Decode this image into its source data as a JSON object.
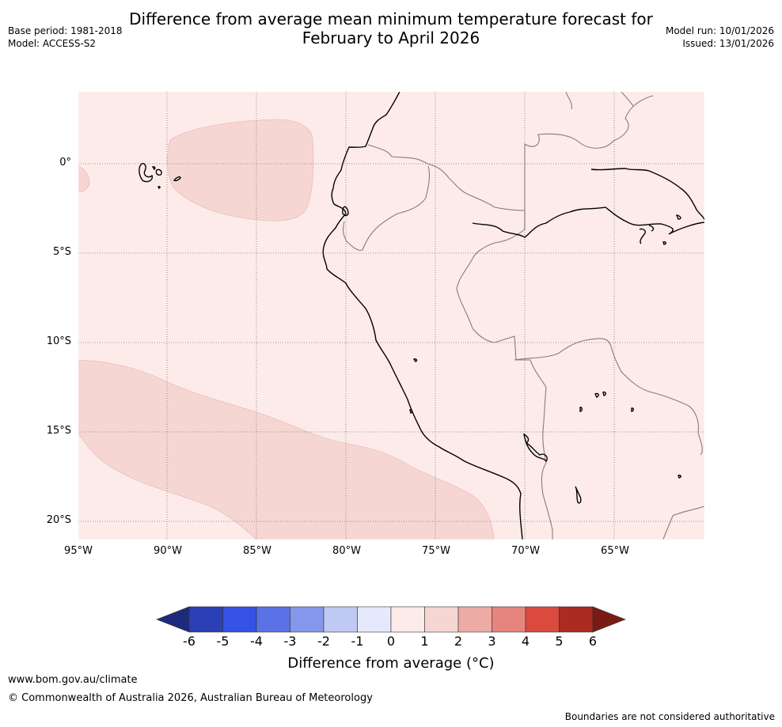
{
  "title": {
    "line1": "Difference from average mean minimum temperature forecast for",
    "line2": "February to April 2026"
  },
  "meta": {
    "base_period": "Base period: 1981-2018",
    "model": "Model: ACCESS-S2",
    "model_run": "Model run: 10/01/2026",
    "issued": "Issued: 13/01/2026"
  },
  "map": {
    "lat_labels": [
      "0°",
      "5°S",
      "10°S",
      "15°S",
      "20°S"
    ],
    "lon_labels": [
      "95°W",
      "90°W",
      "85°W",
      "80°W",
      "75°W",
      "70°W",
      "65°W"
    ],
    "background_anomaly_category": "0 to 1",
    "patch_anomaly_category": "1 to 2",
    "colors": {
      "background_fill": "#fcebe9",
      "patch_fill": "#f6d6d3",
      "coastline": "#000000",
      "border": "#8a7a7a",
      "gridline": "#777777"
    }
  },
  "colorbar": {
    "tick_labels": [
      "-6",
      "-5",
      "-4",
      "-3",
      "-2",
      "-1",
      "0",
      "1",
      "2",
      "3",
      "4",
      "5",
      "6"
    ],
    "colors": [
      "#1e2b7c",
      "#2b40b5",
      "#3552e4",
      "#5b72e6",
      "#8597ec",
      "#c0c8f4",
      "#e6e9fb",
      "#fcebe9",
      "#f6d6d3",
      "#edaba6",
      "#e6857e",
      "#da4a3f",
      "#ab2a22",
      "#7a1a14"
    ],
    "title": "Difference from average (°C)"
  },
  "footer": {
    "url": "www.bom.gov.au/climate",
    "copyright": "© Commonwealth of Australia 2026, Australian Bureau of Meteorology",
    "disclaimer": "Boundaries are not considered authoritative"
  }
}
